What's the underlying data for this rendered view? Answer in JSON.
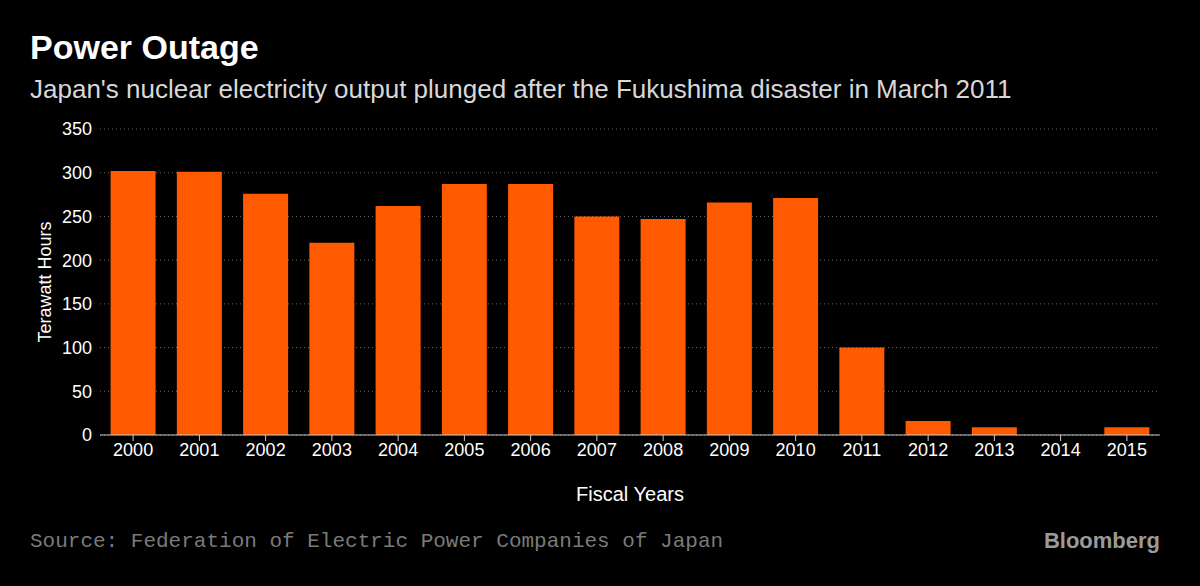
{
  "chart_data": {
    "type": "bar",
    "title": "Power Outage",
    "subtitle": "Japan's nuclear electricity output plunged after the Fukushima disaster in March 2011",
    "x_label": "Fiscal Years",
    "y_label": "Terawatt Hours",
    "source": "Source: Federation of Electric Power Companies of Japan",
    "credit": "Bloomberg",
    "categories": [
      "2000",
      "2001",
      "2002",
      "2003",
      "2004",
      "2005",
      "2006",
      "2007",
      "2008",
      "2009",
      "2010",
      "2011",
      "2012",
      "2013",
      "2014",
      "2015"
    ],
    "values": [
      302,
      301,
      276,
      220,
      262,
      287,
      287,
      250,
      247,
      266,
      271,
      100,
      16,
      9,
      0,
      9
    ],
    "color": "#ff5a00",
    "ylim": [
      0,
      350
    ],
    "yticks": [
      0,
      50,
      100,
      150,
      200,
      250,
      300,
      350
    ],
    "grid": true
  }
}
